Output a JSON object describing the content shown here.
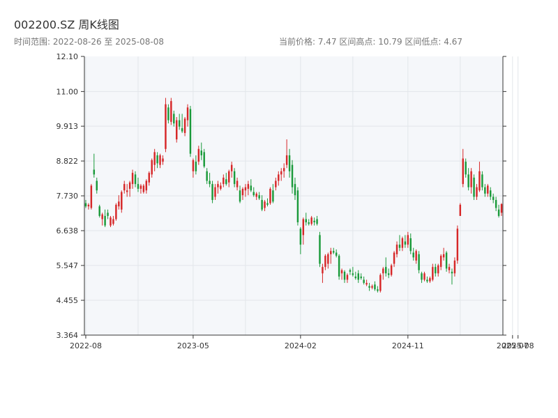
{
  "header": {
    "title": "002200.SZ 周K线图",
    "range_text": "时间范围: 2022-08-26 至 2025-08-08",
    "stats_text": "当前价格: 7.47   区间高点: 10.79   区间低点: 4.67"
  },
  "colors": {
    "up": "#d62728",
    "down": "#1a9a3a",
    "plot_bg": "#f5f7fa",
    "grid": "#e2e6ea",
    "axis": "#333333"
  },
  "chart_data": {
    "type": "candlestick",
    "title": "002200.SZ 周K线图",
    "xlabel": "",
    "ylabel": "",
    "ylim": [
      3.364,
      12.1
    ],
    "y_ticks": [
      "3.364",
      "4.455",
      "5.547",
      "6.638",
      "7.730",
      "8.822",
      "9.913",
      "11.00",
      "12.10"
    ],
    "x_ticks": [
      {
        "index": 0,
        "label": "2022-08"
      },
      {
        "index": 39,
        "label": "2023-05"
      },
      {
        "index": 78,
        "label": "2024-02"
      },
      {
        "index": 117,
        "label": "2024-11"
      },
      {
        "index": 155,
        "label": "2025-07"
      },
      {
        "index": 157,
        "label": "2025-08"
      }
    ],
    "grid": true,
    "candles": [
      [
        7.5,
        7.6,
        7.35,
        7.4
      ],
      [
        7.4,
        7.5,
        7.3,
        7.45
      ],
      [
        7.35,
        8.1,
        7.3,
        8.05
      ],
      [
        8.55,
        9.05,
        8.3,
        8.4
      ],
      [
        8.2,
        8.3,
        7.8,
        7.9
      ],
      [
        7.4,
        7.45,
        7.05,
        7.1
      ],
      [
        7.0,
        7.2,
        6.8,
        7.15
      ],
      [
        7.1,
        7.3,
        6.75,
        6.8
      ],
      [
        7.2,
        7.3,
        7.0,
        7.1
      ],
      [
        6.8,
        7.1,
        6.75,
        7.05
      ],
      [
        6.85,
        7.1,
        6.8,
        7.0
      ],
      [
        7.0,
        7.5,
        6.95,
        7.45
      ],
      [
        7.4,
        7.75,
        7.3,
        7.55
      ],
      [
        7.3,
        7.9,
        7.2,
        7.85
      ],
      [
        7.9,
        8.2,
        7.8,
        8.1
      ],
      [
        7.85,
        8.1,
        7.7,
        7.9
      ],
      [
        7.95,
        8.2,
        7.7,
        8.15
      ],
      [
        8.1,
        8.55,
        7.95,
        8.45
      ],
      [
        8.4,
        8.5,
        8.0,
        8.1
      ],
      [
        8.1,
        8.3,
        7.85,
        7.95
      ],
      [
        7.95,
        8.1,
        7.8,
        8.05
      ],
      [
        7.85,
        8.1,
        7.8,
        8.05
      ],
      [
        7.9,
        8.25,
        7.8,
        8.2
      ],
      [
        8.15,
        8.5,
        8.05,
        8.45
      ],
      [
        8.4,
        8.9,
        8.3,
        8.85
      ],
      [
        8.7,
        9.2,
        8.5,
        9.1
      ],
      [
        9.0,
        9.1,
        8.6,
        8.75
      ],
      [
        8.7,
        9.05,
        8.6,
        9.0
      ],
      [
        8.8,
        9.0,
        8.7,
        8.9
      ],
      [
        9.2,
        10.8,
        9.1,
        10.6
      ],
      [
        10.5,
        10.6,
        10.0,
        10.1
      ],
      [
        10.05,
        10.8,
        9.95,
        10.7
      ],
      [
        10.3,
        10.4,
        9.9,
        10.0
      ],
      [
        9.5,
        10.2,
        9.4,
        10.1
      ],
      [
        10.1,
        10.3,
        9.8,
        9.9
      ],
      [
        9.85,
        10.3,
        9.7,
        9.75
      ],
      [
        9.7,
        10.2,
        9.6,
        10.15
      ],
      [
        10.1,
        10.6,
        9.9,
        10.5
      ],
      [
        10.45,
        10.55,
        8.95,
        9.05
      ],
      [
        8.5,
        8.9,
        8.3,
        8.85
      ],
      [
        8.8,
        9.0,
        8.4,
        8.5
      ],
      [
        8.8,
        9.3,
        8.7,
        9.2
      ],
      [
        9.15,
        9.4,
        8.85,
        9.0
      ],
      [
        9.1,
        9.2,
        8.6,
        8.65
      ],
      [
        8.5,
        8.6,
        8.1,
        8.2
      ],
      [
        8.2,
        8.45,
        8.0,
        8.1
      ],
      [
        8.1,
        8.2,
        7.5,
        7.6
      ],
      [
        7.7,
        8.1,
        7.6,
        8.0
      ],
      [
        8.0,
        8.2,
        7.8,
        8.1
      ],
      [
        7.95,
        8.15,
        7.9,
        8.05
      ],
      [
        8.1,
        8.4,
        8.0,
        8.3
      ],
      [
        8.25,
        8.45,
        8.05,
        8.1
      ],
      [
        8.15,
        8.55,
        8.0,
        8.5
      ],
      [
        8.5,
        8.8,
        8.3,
        8.7
      ],
      [
        8.5,
        8.6,
        8.0,
        8.1
      ],
      [
        8.0,
        8.3,
        7.9,
        8.2
      ],
      [
        7.9,
        8.05,
        7.5,
        7.55
      ],
      [
        7.75,
        8.0,
        7.6,
        7.95
      ],
      [
        7.9,
        8.1,
        7.7,
        8.0
      ],
      [
        7.95,
        8.2,
        7.75,
        8.1
      ],
      [
        8.05,
        8.25,
        7.85,
        7.9
      ],
      [
        7.85,
        8.0,
        7.7,
        7.75
      ],
      [
        7.7,
        7.85,
        7.6,
        7.8
      ],
      [
        7.75,
        7.85,
        7.6,
        7.65
      ],
      [
        7.6,
        7.75,
        7.25,
        7.3
      ],
      [
        7.35,
        7.6,
        7.25,
        7.55
      ],
      [
        7.5,
        7.65,
        7.4,
        7.45
      ],
      [
        7.5,
        8.0,
        7.45,
        7.95
      ],
      [
        7.9,
        8.1,
        7.5,
        7.55
      ],
      [
        8.0,
        8.3,
        7.9,
        8.2
      ],
      [
        8.2,
        8.5,
        8.05,
        8.4
      ],
      [
        8.4,
        8.6,
        8.2,
        8.5
      ],
      [
        8.5,
        8.75,
        8.3,
        8.6
      ],
      [
        8.7,
        9.5,
        8.6,
        9.0
      ],
      [
        9.0,
        9.2,
        8.3,
        8.5
      ],
      [
        8.7,
        8.85,
        7.8,
        8.0
      ],
      [
        8.1,
        8.3,
        7.6,
        7.75
      ],
      [
        7.9,
        8.0,
        6.8,
        6.9
      ],
      [
        6.7,
        6.75,
        5.9,
        6.2
      ],
      [
        6.5,
        7.05,
        6.2,
        7.0
      ],
      [
        7.0,
        7.2,
        6.8,
        6.9
      ],
      [
        6.9,
        7.0,
        6.8,
        6.85
      ],
      [
        6.85,
        7.1,
        6.8,
        7.05
      ],
      [
        6.95,
        7.05,
        6.8,
        6.9
      ],
      [
        7.0,
        7.1,
        6.8,
        6.85
      ],
      [
        6.5,
        6.6,
        5.5,
        5.6
      ],
      [
        5.3,
        5.6,
        5.0,
        5.5
      ],
      [
        5.5,
        5.9,
        5.4,
        5.85
      ],
      [
        5.6,
        5.95,
        5.45,
        5.9
      ],
      [
        5.9,
        6.1,
        5.6,
        6.0
      ],
      [
        6.0,
        6.1,
        5.9,
        5.95
      ],
      [
        5.95,
        6.05,
        5.8,
        5.85
      ],
      [
        5.85,
        5.9,
        5.1,
        5.2
      ],
      [
        5.3,
        5.45,
        5.1,
        5.4
      ],
      [
        5.35,
        5.4,
        5.0,
        5.1
      ],
      [
        5.1,
        5.3,
        5.0,
        5.25
      ],
      [
        5.4,
        5.45,
        5.25,
        5.35
      ],
      [
        5.3,
        5.5,
        5.2,
        5.25
      ],
      [
        5.2,
        5.35,
        5.1,
        5.15
      ],
      [
        5.3,
        5.4,
        5.0,
        5.1
      ],
      [
        5.2,
        5.3,
        5.1,
        5.15
      ],
      [
        5.1,
        5.2,
        4.95,
        5.0
      ],
      [
        4.95,
        5.1,
        4.9,
        5.0
      ],
      [
        4.9,
        5.0,
        4.75,
        4.85
      ],
      [
        4.85,
        4.95,
        4.8,
        4.9
      ],
      [
        4.95,
        5.05,
        4.75,
        4.8
      ],
      [
        4.8,
        4.9,
        4.7,
        4.75
      ],
      [
        4.75,
        5.3,
        4.7,
        5.25
      ],
      [
        5.3,
        5.5,
        5.1,
        5.45
      ],
      [
        5.5,
        5.8,
        5.2,
        5.3
      ],
      [
        5.3,
        5.45,
        5.15,
        5.25
      ],
      [
        5.25,
        5.6,
        5.2,
        5.55
      ],
      [
        5.6,
        6.0,
        5.5,
        5.95
      ],
      [
        5.9,
        6.3,
        5.8,
        6.2
      ],
      [
        6.2,
        6.5,
        6.0,
        6.1
      ],
      [
        6.1,
        6.45,
        6.0,
        6.4
      ],
      [
        6.3,
        6.5,
        6.1,
        6.2
      ],
      [
        6.2,
        6.6,
        6.1,
        6.5
      ],
      [
        6.4,
        6.55,
        5.9,
        6.0
      ],
      [
        5.95,
        6.1,
        5.7,
        5.8
      ],
      [
        5.7,
        6.05,
        5.6,
        6.0
      ],
      [
        5.9,
        6.0,
        5.3,
        5.4
      ],
      [
        5.3,
        5.35,
        5.0,
        5.1
      ],
      [
        5.1,
        5.35,
        5.05,
        5.3
      ],
      [
        5.1,
        5.2,
        5.0,
        5.05
      ],
      [
        5.05,
        5.2,
        5.0,
        5.15
      ],
      [
        5.1,
        5.6,
        5.05,
        5.5
      ],
      [
        5.5,
        5.6,
        5.2,
        5.3
      ],
      [
        5.3,
        5.6,
        5.2,
        5.55
      ],
      [
        5.5,
        5.9,
        5.4,
        5.85
      ],
      [
        5.8,
        6.1,
        5.7,
        5.9
      ],
      [
        5.95,
        6.0,
        5.35,
        5.45
      ],
      [
        5.4,
        5.6,
        5.3,
        5.5
      ],
      [
        5.35,
        5.45,
        4.95,
        5.3
      ],
      [
        5.3,
        5.8,
        5.2,
        5.7
      ],
      [
        5.7,
        6.8,
        5.6,
        6.7
      ],
      [
        7.1,
        7.5,
        7.1,
        7.45
      ],
      [
        8.1,
        9.2,
        8.0,
        8.9
      ],
      [
        8.8,
        8.9,
        8.3,
        8.4
      ],
      [
        8.4,
        8.6,
        7.9,
        8.0
      ],
      [
        8.0,
        8.6,
        7.8,
        8.5
      ],
      [
        8.3,
        8.4,
        7.6,
        7.7
      ],
      [
        7.7,
        8.1,
        7.6,
        8.0
      ],
      [
        7.9,
        8.8,
        7.85,
        8.5
      ],
      [
        8.4,
        8.5,
        7.9,
        8.0
      ],
      [
        8.0,
        8.1,
        7.7,
        7.8
      ],
      [
        7.8,
        8.1,
        7.7,
        8.05
      ],
      [
        7.9,
        8.0,
        7.6,
        7.7
      ],
      [
        7.7,
        7.8,
        7.5,
        7.6
      ],
      [
        7.6,
        7.7,
        7.25,
        7.35
      ],
      [
        7.3,
        7.45,
        7.05,
        7.1
      ],
      [
        7.2,
        7.5,
        7.1,
        7.47
      ]
    ]
  }
}
